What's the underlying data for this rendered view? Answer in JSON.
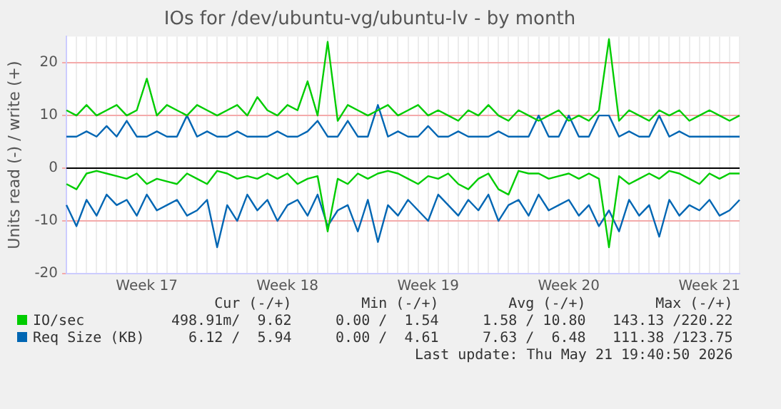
{
  "chart_data": {
    "type": "line",
    "title": "IOs for /dev/ubuntu-vg/ubuntu-lv - by month",
    "ylabel": "Units read (-) / write (+)",
    "categories": [
      null,
      null,
      null,
      null,
      null,
      null,
      null,
      null,
      "Week 17",
      null,
      null,
      null,
      null,
      null,
      null,
      null,
      null,
      null,
      null,
      null,
      null,
      null,
      "Week 18",
      null,
      null,
      null,
      null,
      null,
      null,
      null,
      null,
      null,
      null,
      null,
      null,
      null,
      "Week 19",
      null,
      null,
      null,
      null,
      null,
      null,
      null,
      null,
      null,
      null,
      null,
      null,
      null,
      "Week 20",
      null,
      null,
      null,
      null,
      null,
      null,
      null,
      null,
      null,
      null,
      null,
      null,
      null,
      "Week 21",
      null,
      null,
      null
    ],
    "ylim": [
      -20,
      25
    ],
    "yticks": [
      -20,
      -10,
      0,
      10,
      20
    ],
    "grid": true,
    "legend": "bottom",
    "marker": "none",
    "line_style": "solid",
    "ref_lines": [
      {
        "axis": "y",
        "value": 0,
        "color": "#000000"
      }
    ],
    "series": [
      {
        "name": "IO/sec",
        "color": "#00cc00",
        "values": [
          11,
          10,
          12,
          10,
          11,
          12,
          10,
          11,
          17,
          10,
          12,
          11,
          10,
          12,
          11,
          10,
          11,
          12,
          10,
          13.5,
          11,
          10,
          12,
          11,
          16.5,
          10,
          24,
          9,
          12,
          11,
          10,
          11,
          12,
          10,
          11,
          12,
          10,
          11,
          10,
          9,
          11,
          10,
          12,
          10,
          9,
          11,
          10,
          9,
          10,
          11,
          9,
          10,
          9,
          11,
          24.5,
          9,
          11,
          10,
          9,
          11,
          10,
          11,
          9,
          10,
          11,
          10,
          9,
          10
        ]
      },
      {
        "name": "Req Size (KB)",
        "color": "#0066b3",
        "values": [
          6,
          6,
          7,
          6,
          8,
          6,
          9,
          6,
          6,
          7,
          6,
          6,
          10,
          6,
          7,
          6,
          6,
          7,
          6,
          6,
          6,
          7,
          6,
          6,
          7,
          9,
          6,
          6,
          9,
          6,
          6,
          12,
          6,
          7,
          6,
          6,
          8,
          6,
          6,
          7,
          6,
          6,
          6,
          7,
          6,
          6,
          6,
          10,
          6,
          6,
          10,
          6,
          6,
          10,
          10,
          6,
          7,
          6,
          6,
          10,
          6,
          7,
          6,
          6,
          6,
          6,
          6,
          6
        ]
      },
      {
        "color": "#00cc00",
        "values": [
          -3,
          -4,
          -1,
          -0.5,
          -1,
          -1.5,
          -2,
          -1,
          -3,
          -2,
          -2.5,
          -3,
          -1,
          -2,
          -3,
          -0.5,
          -1,
          -2,
          -1.5,
          -2,
          -1,
          -2,
          -1,
          -3,
          -2,
          -1.5,
          -12,
          -2,
          -3,
          -1,
          -2,
          -1,
          -0.5,
          -1,
          -2,
          -3,
          -1.5,
          -2,
          -1,
          -3,
          -4,
          -2,
          -1,
          -4,
          -5,
          -0.5,
          -1,
          -1,
          -2,
          -1.5,
          -1,
          -2,
          -1,
          -2,
          -15,
          -1.5,
          -3,
          -2,
          -1,
          -2,
          -0.5,
          -1,
          -2,
          -3,
          -1,
          -2,
          -1,
          -1
        ]
      },
      {
        "color": "#0066b3",
        "values": [
          -7,
          -11,
          -6,
          -9,
          -5,
          -7,
          -6,
          -9,
          -5,
          -8,
          -7,
          -6,
          -9,
          -8,
          -6,
          -15,
          -7,
          -10,
          -5,
          -8,
          -6,
          -10,
          -7,
          -6,
          -9,
          -5,
          -11,
          -8,
          -7,
          -12,
          -6,
          -14,
          -7,
          -9,
          -6,
          -8,
          -10,
          -5,
          -7,
          -9,
          -6,
          -8,
          -5,
          -10,
          -7,
          -6,
          -9,
          -5,
          -8,
          -7,
          -6,
          -9,
          -7,
          -11,
          -8,
          -12,
          -6,
          -9,
          -7,
          -13,
          -6,
          -9,
          -7,
          -8,
          -6,
          -9,
          -8,
          -6
        ]
      }
    ],
    "annotations": [
      "Cur (-/+)",
      "Min (-/+)",
      "Avg (-/+)",
      "Max (-/+)",
      "498.91m/  9.62",
      "0.00 /  1.54",
      "1.58 / 10.80",
      "143.13 /220.22",
      "6.12 /  5.94",
      "0.00 /  4.61",
      "7.63 /  6.48",
      "111.38 /123.75",
      "Last update: Thu May 21 19:40:50 2026"
    ]
  }
}
